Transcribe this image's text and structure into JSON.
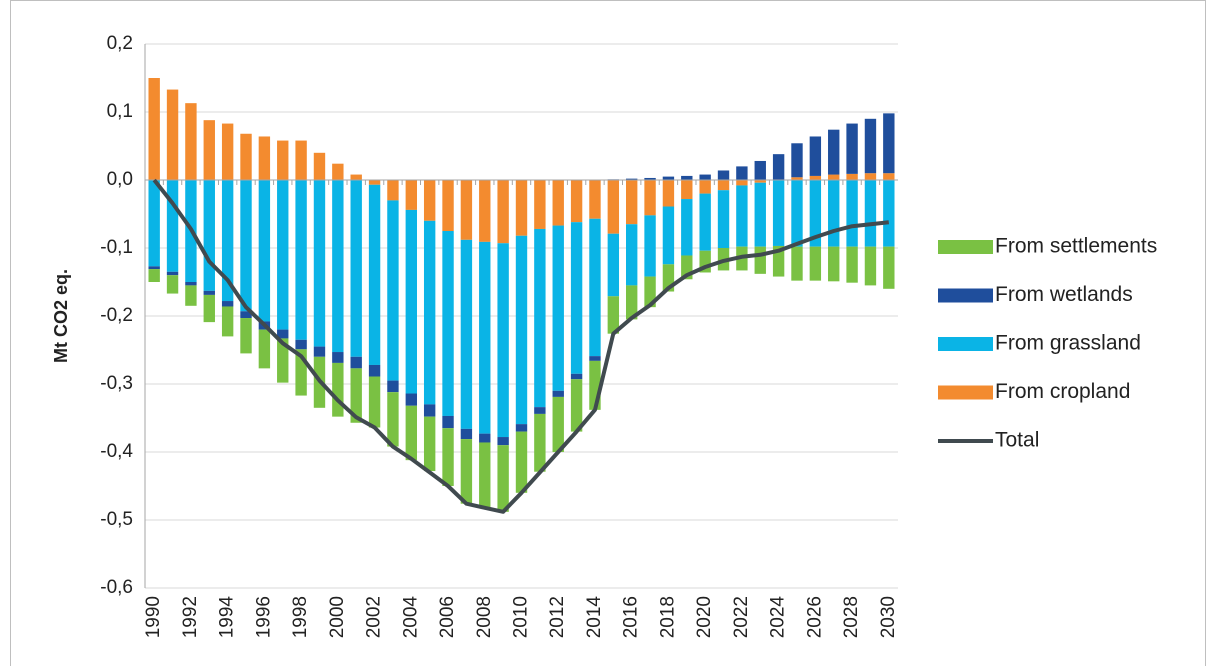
{
  "chart_data": {
    "type": "stacked-bar-line",
    "y_label": "Mt CO2 eq.",
    "x": [
      1990,
      1991,
      1992,
      1993,
      1994,
      1995,
      1996,
      1997,
      1998,
      1999,
      2000,
      2001,
      2002,
      2003,
      2004,
      2005,
      2006,
      2007,
      2008,
      2009,
      2010,
      2011,
      2012,
      2013,
      2014,
      2015,
      2016,
      2017,
      2018,
      2019,
      2020,
      2021,
      2022,
      2023,
      2024,
      2025,
      2026,
      2027,
      2028,
      2029,
      2030
    ],
    "xlim": [
      1989.5,
      2030.5
    ],
    "xticks": [
      1990,
      1992,
      1994,
      1996,
      1998,
      2000,
      2002,
      2004,
      2006,
      2008,
      2010,
      2012,
      2014,
      2016,
      2018,
      2020,
      2022,
      2024,
      2026,
      2028,
      2030
    ],
    "ylim": [
      -0.6,
      0.2
    ],
    "yticks": [
      {
        "value": -0.6,
        "label": "-0,6"
      },
      {
        "value": -0.5,
        "label": "-0,5"
      },
      {
        "value": -0.4,
        "label": "-0,4"
      },
      {
        "value": -0.3,
        "label": "-0,3"
      },
      {
        "value": -0.2,
        "label": "-0,2"
      },
      {
        "value": -0.1,
        "label": "-0,1"
      },
      {
        "value": 0,
        "label": "0,0"
      },
      {
        "value": 0.1,
        "label": "0,1"
      },
      {
        "value": 0.2,
        "label": "0,2"
      }
    ],
    "grid": true,
    "legend": "right",
    "series": [
      {
        "name": "From cropland",
        "color": "#f38b2f",
        "values": [
          0.15,
          0.133,
          0.113,
          0.088,
          0.083,
          0.068,
          0.064,
          0.058,
          0.058,
          0.04,
          0.024,
          0.008,
          -0.007,
          -0.03,
          -0.044,
          -0.06,
          -0.075,
          -0.088,
          -0.091,
          -0.093,
          -0.082,
          -0.072,
          -0.067,
          -0.062,
          -0.057,
          -0.079,
          -0.065,
          -0.052,
          -0.039,
          -0.028,
          -0.02,
          -0.015,
          -0.008,
          -0.004,
          0.0,
          0.004,
          0.006,
          0.008,
          0.009,
          0.01,
          0.01
        ]
      },
      {
        "name": "From grassland",
        "color": "#0ab4e6",
        "values": [
          -0.127,
          -0.135,
          -0.15,
          -0.163,
          -0.178,
          -0.193,
          -0.208,
          -0.22,
          -0.235,
          -0.245,
          -0.253,
          -0.26,
          -0.265,
          -0.265,
          -0.27,
          -0.27,
          -0.272,
          -0.278,
          -0.282,
          -0.285,
          -0.277,
          -0.262,
          -0.243,
          -0.223,
          -0.202,
          -0.092,
          -0.09,
          -0.09,
          -0.085,
          -0.083,
          -0.084,
          -0.085,
          -0.09,
          -0.094,
          -0.097,
          -0.098,
          -0.098,
          -0.098,
          -0.098,
          -0.098,
          -0.098
        ]
      },
      {
        "name": "From wetlands",
        "color": "#1f4e9c",
        "values": [
          -0.004,
          -0.005,
          -0.005,
          -0.006,
          -0.008,
          -0.01,
          -0.012,
          -0.013,
          -0.014,
          -0.015,
          -0.016,
          -0.017,
          -0.017,
          -0.017,
          -0.018,
          -0.018,
          -0.018,
          -0.015,
          -0.013,
          -0.012,
          -0.011,
          -0.01,
          -0.009,
          -0.008,
          -0.007,
          0.001,
          0.002,
          0.003,
          0.005,
          0.006,
          0.008,
          0.014,
          0.02,
          0.028,
          0.038,
          0.05,
          0.058,
          0.066,
          0.074,
          0.08,
          0.088
        ]
      },
      {
        "name": "From settlements",
        "color": "#7ac143",
        "values": [
          -0.019,
          -0.027,
          -0.03,
          -0.04,
          -0.044,
          -0.052,
          -0.057,
          -0.065,
          -0.068,
          -0.075,
          -0.079,
          -0.08,
          -0.075,
          -0.08,
          -0.08,
          -0.08,
          -0.085,
          -0.095,
          -0.096,
          -0.098,
          -0.09,
          -0.085,
          -0.081,
          -0.077,
          -0.072,
          -0.055,
          -0.05,
          -0.045,
          -0.04,
          -0.035,
          -0.032,
          -0.033,
          -0.035,
          -0.04,
          -0.045,
          -0.05,
          -0.05,
          -0.051,
          -0.053,
          -0.057,
          -0.062
        ]
      }
    ],
    "line": {
      "name": "Total",
      "color": "#404a4f",
      "values": [
        0.0,
        -0.034,
        -0.072,
        -0.12,
        -0.147,
        -0.187,
        -0.213,
        -0.24,
        -0.259,
        -0.295,
        -0.324,
        -0.349,
        -0.364,
        -0.392,
        -0.41,
        -0.43,
        -0.45,
        -0.476,
        -0.482,
        -0.488,
        -0.46,
        -0.43,
        -0.4,
        -0.37,
        -0.338,
        -0.226,
        -0.203,
        -0.184,
        -0.159,
        -0.14,
        -0.128,
        -0.119,
        -0.113,
        -0.11,
        -0.104,
        -0.094,
        -0.084,
        -0.075,
        -0.068,
        -0.065,
        -0.062
      ]
    }
  }
}
